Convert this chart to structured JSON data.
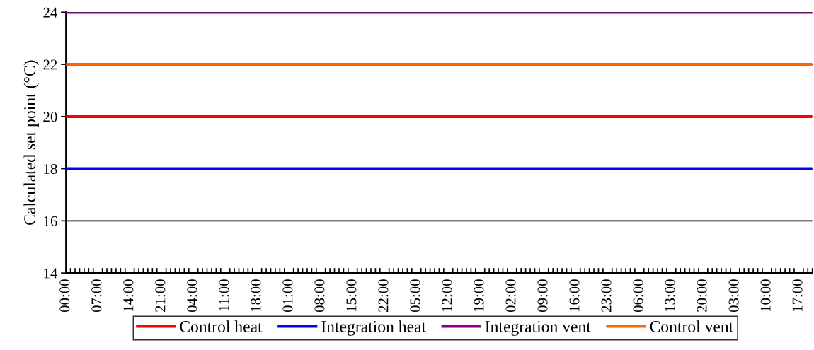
{
  "chart_data": {
    "type": "line",
    "ylabel": "Calculated set point (°C)",
    "ylim": [
      14,
      24
    ],
    "yticks": [
      14,
      16,
      18,
      20,
      22,
      24
    ],
    "grid": "y",
    "legend": "bottom",
    "marker": "none",
    "line_style": "solid",
    "categories": [
      "00:00",
      null,
      null,
      null,
      null,
      null,
      null,
      "07:00",
      null,
      null,
      null,
      null,
      null,
      null,
      "14:00",
      null,
      null,
      null,
      null,
      null,
      null,
      "21:00",
      null,
      null,
      null,
      null,
      null,
      null,
      "04:00",
      null,
      null,
      null,
      null,
      null,
      null,
      "11:00",
      null,
      null,
      null,
      null,
      null,
      null,
      "18:00",
      null,
      null,
      null,
      null,
      null,
      null,
      "01:00",
      null,
      null,
      null,
      null,
      null,
      null,
      "08:00",
      null,
      null,
      null,
      null,
      null,
      null,
      "15:00",
      null,
      null,
      null,
      null,
      null,
      null,
      "22:00",
      null,
      null,
      null,
      null,
      null,
      null,
      "05:00",
      null,
      null,
      null,
      null,
      null,
      null,
      "12:00",
      null,
      null,
      null,
      null,
      null,
      null,
      "19:00",
      null,
      null,
      null,
      null,
      null,
      null,
      "02:00",
      null,
      null,
      null,
      null,
      null,
      null,
      "09:00",
      null,
      null,
      null,
      null,
      null,
      null,
      "16:00",
      null,
      null,
      null,
      null,
      null,
      null,
      "23:00",
      null,
      null,
      null,
      null,
      null,
      null,
      "06:00",
      null,
      null,
      null,
      null,
      null,
      null,
      "13:00",
      null,
      null,
      null,
      null,
      null,
      null,
      "20:00",
      null,
      null,
      null,
      null,
      null,
      null,
      "03:00",
      null,
      null,
      null,
      null,
      null,
      null,
      "10:00",
      null,
      null,
      null,
      null,
      null,
      null,
      "17:00",
      null,
      null,
      null
    ],
    "series": [
      {
        "name": "Control heat",
        "color": "#ff0000",
        "values": [
          20,
          20,
          20,
          20,
          20,
          20,
          20,
          20,
          20,
          20,
          20,
          20,
          20,
          20,
          20,
          20,
          20,
          20,
          20,
          20,
          20,
          20,
          20,
          20,
          20,
          20,
          20,
          20,
          20,
          20,
          20,
          20,
          20,
          20,
          20,
          20,
          20,
          20,
          20,
          20,
          20,
          20,
          20,
          20,
          20,
          20,
          20,
          20,
          20,
          20,
          20,
          20,
          20,
          20,
          20,
          20,
          20,
          20,
          20,
          20,
          20,
          20,
          20,
          20,
          20,
          20,
          20,
          20,
          20,
          20,
          20,
          20,
          20,
          20,
          20,
          20,
          20,
          20,
          20,
          20,
          20,
          20,
          20,
          20,
          20,
          20,
          20,
          20,
          20,
          20,
          20,
          20,
          20,
          20,
          20,
          20,
          20,
          20,
          20,
          20,
          20,
          20,
          20,
          20,
          20,
          20,
          20,
          20,
          20,
          20,
          20,
          20,
          20,
          20,
          20,
          20,
          20,
          20,
          20,
          20,
          20,
          20,
          20,
          20,
          20,
          20,
          20,
          20,
          20,
          20,
          20,
          20,
          20,
          20,
          20,
          20,
          20,
          20,
          20,
          20,
          20,
          20,
          20,
          20,
          20,
          20,
          20,
          20,
          20,
          20,
          20,
          20,
          20,
          20,
          20,
          20,
          20,
          20,
          20,
          20,
          20,
          20,
          20,
          20,
          20
        ]
      },
      {
        "name": "Integration heat",
        "color": "#0000ff",
        "values": [
          18,
          18,
          18,
          18,
          18,
          18,
          18,
          18,
          18,
          18,
          18,
          18,
          18,
          18,
          18,
          18,
          18,
          18,
          18,
          18,
          18,
          18,
          18,
          18,
          18,
          18,
          18,
          18,
          18,
          18,
          18,
          18,
          18,
          18,
          18,
          18,
          18,
          18,
          18,
          18,
          18,
          18,
          18,
          18,
          18,
          18,
          18,
          18,
          18,
          18,
          18,
          18,
          18,
          18,
          18,
          18,
          18,
          18,
          18,
          18,
          18,
          18,
          18,
          18,
          18,
          18,
          18,
          18,
          18,
          18,
          18,
          18,
          18,
          18,
          18,
          18,
          18,
          18,
          18,
          18,
          18,
          18,
          18,
          18,
          18,
          18,
          18,
          18,
          18,
          18,
          18,
          18,
          18,
          18,
          18,
          18,
          18,
          18,
          18,
          18,
          18,
          18,
          18,
          18,
          18,
          18,
          18,
          18,
          18,
          18,
          18,
          18,
          18,
          18,
          18,
          18,
          18,
          18,
          18,
          18,
          18,
          18,
          18,
          18,
          18,
          18,
          18,
          18,
          18,
          18,
          18,
          18,
          18,
          18,
          18,
          18,
          18,
          18,
          18,
          18,
          18,
          18,
          18,
          18,
          18,
          18,
          18,
          18,
          18,
          18,
          18,
          18,
          18,
          18,
          18,
          18,
          18,
          18,
          18,
          18,
          18,
          18,
          18,
          18,
          18
        ]
      },
      {
        "name": "Integration vent",
        "color": "#800080",
        "values": [
          24,
          24,
          24,
          24,
          24,
          24,
          24,
          24,
          24,
          24,
          24,
          24,
          24,
          24,
          24,
          24,
          24,
          24,
          24,
          24,
          24,
          24,
          24,
          24,
          24,
          24,
          24,
          24,
          24,
          24,
          24,
          24,
          24,
          24,
          24,
          24,
          24,
          24,
          24,
          24,
          24,
          24,
          24,
          24,
          24,
          24,
          24,
          24,
          24,
          24,
          24,
          24,
          24,
          24,
          24,
          24,
          24,
          24,
          24,
          24,
          24,
          24,
          24,
          24,
          24,
          24,
          24,
          24,
          24,
          24,
          24,
          24,
          24,
          24,
          24,
          24,
          24,
          24,
          24,
          24,
          24,
          24,
          24,
          24,
          24,
          24,
          24,
          24,
          24,
          24,
          24,
          24,
          24,
          24,
          24,
          24,
          24,
          24,
          24,
          24,
          24,
          24,
          24,
          24,
          24,
          24,
          24,
          24,
          24,
          24,
          24,
          24,
          24,
          24,
          24,
          24,
          24,
          24,
          24,
          24,
          24,
          24,
          24,
          24,
          24,
          24,
          24,
          24,
          24,
          24,
          24,
          24,
          24,
          24,
          24,
          24,
          24,
          24,
          24,
          24,
          24,
          24,
          24,
          24,
          24,
          24,
          24,
          24,
          24,
          24,
          24,
          24,
          24,
          24,
          24,
          24,
          24,
          24,
          24,
          24,
          24,
          24,
          24,
          24,
          24
        ]
      },
      {
        "name": "Control vent",
        "color": "#ff6600",
        "values": [
          22,
          22,
          22,
          22,
          22,
          22,
          22,
          22,
          22,
          22,
          22,
          22,
          22,
          22,
          22,
          22,
          22,
          22,
          22,
          22,
          22,
          22,
          22,
          22,
          22,
          22,
          22,
          22,
          22,
          22,
          22,
          22,
          22,
          22,
          22,
          22,
          22,
          22,
          22,
          22,
          22,
          22,
          22,
          22,
          22,
          22,
          22,
          22,
          22,
          22,
          22,
          22,
          22,
          22,
          22,
          22,
          22,
          22,
          22,
          22,
          22,
          22,
          22,
          22,
          22,
          22,
          22,
          22,
          22,
          22,
          22,
          22,
          22,
          22,
          22,
          22,
          22,
          22,
          22,
          22,
          22,
          22,
          22,
          22,
          22,
          22,
          22,
          22,
          22,
          22,
          22,
          22,
          22,
          22,
          22,
          22,
          22,
          22,
          22,
          22,
          22,
          22,
          22,
          22,
          22,
          22,
          22,
          22,
          22,
          22,
          22,
          22,
          22,
          22,
          22,
          22,
          22,
          22,
          22,
          22,
          22,
          22,
          22,
          22,
          22,
          22,
          22,
          22,
          22,
          22,
          22,
          22,
          22,
          22,
          22,
          22,
          22,
          22,
          22,
          22,
          22,
          22,
          22,
          22,
          22,
          22,
          22,
          22,
          22,
          22,
          22,
          22,
          22,
          22,
          22,
          22,
          22,
          22,
          22,
          22,
          22,
          22,
          22,
          22,
          22
        ]
      }
    ]
  }
}
